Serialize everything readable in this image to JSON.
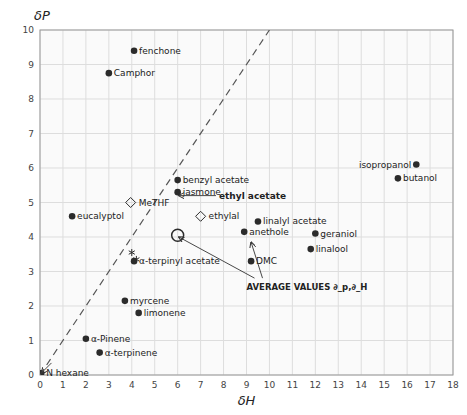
{
  "chart_data": {
    "type": "scatter",
    "xlabel": "δH",
    "ylabel": "δP",
    "xlim": [
      0,
      18
    ],
    "ylim": [
      0,
      10
    ],
    "xticks": [
      0,
      1,
      2,
      3,
      4,
      5,
      6,
      7,
      8,
      9,
      10,
      11,
      12,
      13,
      14,
      15,
      16,
      17,
      18
    ],
    "yticks": [
      0,
      1,
      2,
      3,
      4,
      5,
      6,
      7,
      8,
      9,
      10
    ],
    "grid": true,
    "series": [
      {
        "type": "scatter",
        "marker": "circle",
        "x": [
          4.1,
          3.0,
          1.4,
          6.0,
          6.0,
          8.9,
          9.5,
          12.0,
          11.8,
          9.2,
          3.7,
          4.3,
          2.0,
          2.6,
          0.05,
          16.4,
          15.6,
          4.1
        ],
        "values": [
          9.4,
          8.75,
          4.6,
          5.65,
          5.3,
          4.15,
          4.45,
          4.1,
          3.65,
          3.3,
          2.15,
          1.8,
          1.05,
          0.65,
          0.05,
          6.1,
          5.7,
          3.3
        ],
        "labels": [
          "fenchone",
          "Camphor",
          "eucalyptol",
          "benzyl acetate",
          "jasmone",
          "anethole",
          "linalyl acetate",
          "geraniol",
          "linalool",
          "DMC",
          "myrcene",
          "limonene",
          "α-Pinene",
          "α-terpinene",
          "N hexane",
          "isopropanol",
          "butanol",
          "α-terpinyl acetate"
        ]
      },
      {
        "type": "scatter",
        "marker": "diamond-open",
        "x": [
          3.95,
          7.0
        ],
        "values": [
          5.0,
          4.6
        ],
        "labels": [
          "MeTHF",
          "ethylal"
        ]
      },
      {
        "type": "scatter",
        "marker": "circle-open",
        "x": [
          6.0
        ],
        "values": [
          4.05
        ]
      },
      {
        "type": "scatter",
        "marker": "asterisk",
        "x": [
          4.0,
          4.2
        ],
        "values": [
          3.55,
          3.35
        ]
      },
      {
        "type": "line",
        "line_style": "dashed",
        "x": [
          0,
          10
        ],
        "values": [
          0,
          10
        ]
      }
    ],
    "annotations": [
      {
        "text": "ethyl acetate",
        "x": 7.8,
        "y": 5.2,
        "arrows": [
          {
            "x": 6.05,
            "y": 5.2
          }
        ]
      },
      {
        "text": "AVERAGE VALUES ∂_p,∂_H",
        "x": 9.0,
        "y": 2.75,
        "arrows": [
          {
            "x": 6.05,
            "y": 4.0
          },
          {
            "x": 9.2,
            "y": 3.85
          }
        ]
      },
      {
        "x": 0.5,
        "y": 0.35,
        "arrows": [
          {
            "x": 0.05,
            "y": 0.05
          }
        ]
      }
    ]
  }
}
